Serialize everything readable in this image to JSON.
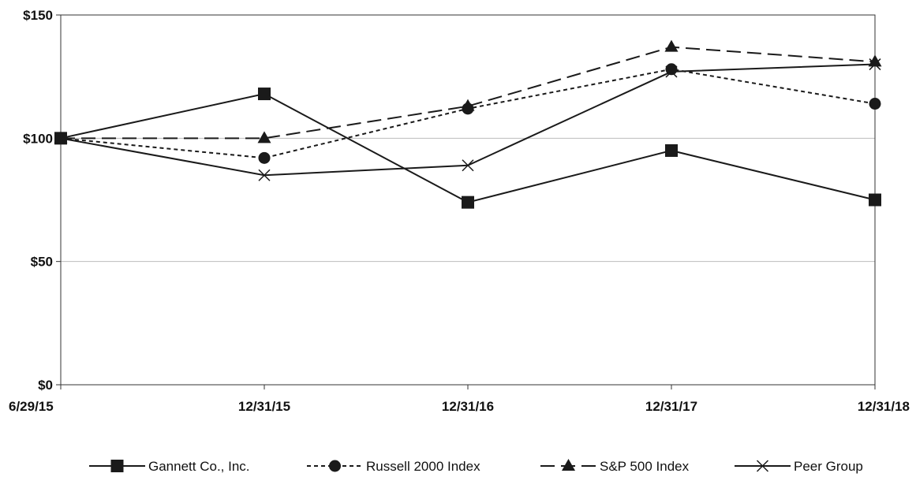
{
  "chart_data": {
    "type": "line",
    "title": "",
    "xlabel": "",
    "ylabel": "",
    "categories": [
      "6/29/15",
      "12/31/15",
      "12/31/16",
      "12/31/17",
      "12/31/18"
    ],
    "ylim": [
      0,
      150
    ],
    "yticks": [
      0,
      50,
      100,
      150
    ],
    "ytick_labels": [
      "$0",
      "$50",
      "$100",
      "$150"
    ],
    "grid": "horizontal",
    "legend_position": "bottom",
    "series": [
      {
        "name": "Gannett Co., Inc.",
        "values": [
          100,
          118,
          74,
          95,
          75
        ],
        "marker": "square",
        "dash": "solid"
      },
      {
        "name": "Russell 2000 Index",
        "values": [
          100,
          92,
          112,
          128,
          114
        ],
        "marker": "circle",
        "dash": "short-dash"
      },
      {
        "name": "S&P 500 Index",
        "values": [
          100,
          100,
          113,
          137,
          131
        ],
        "marker": "triangle",
        "dash": "long-dash"
      },
      {
        "name": "Peer Group",
        "values": [
          100,
          85,
          89,
          127,
          130
        ],
        "marker": "x",
        "dash": "solid"
      }
    ]
  }
}
